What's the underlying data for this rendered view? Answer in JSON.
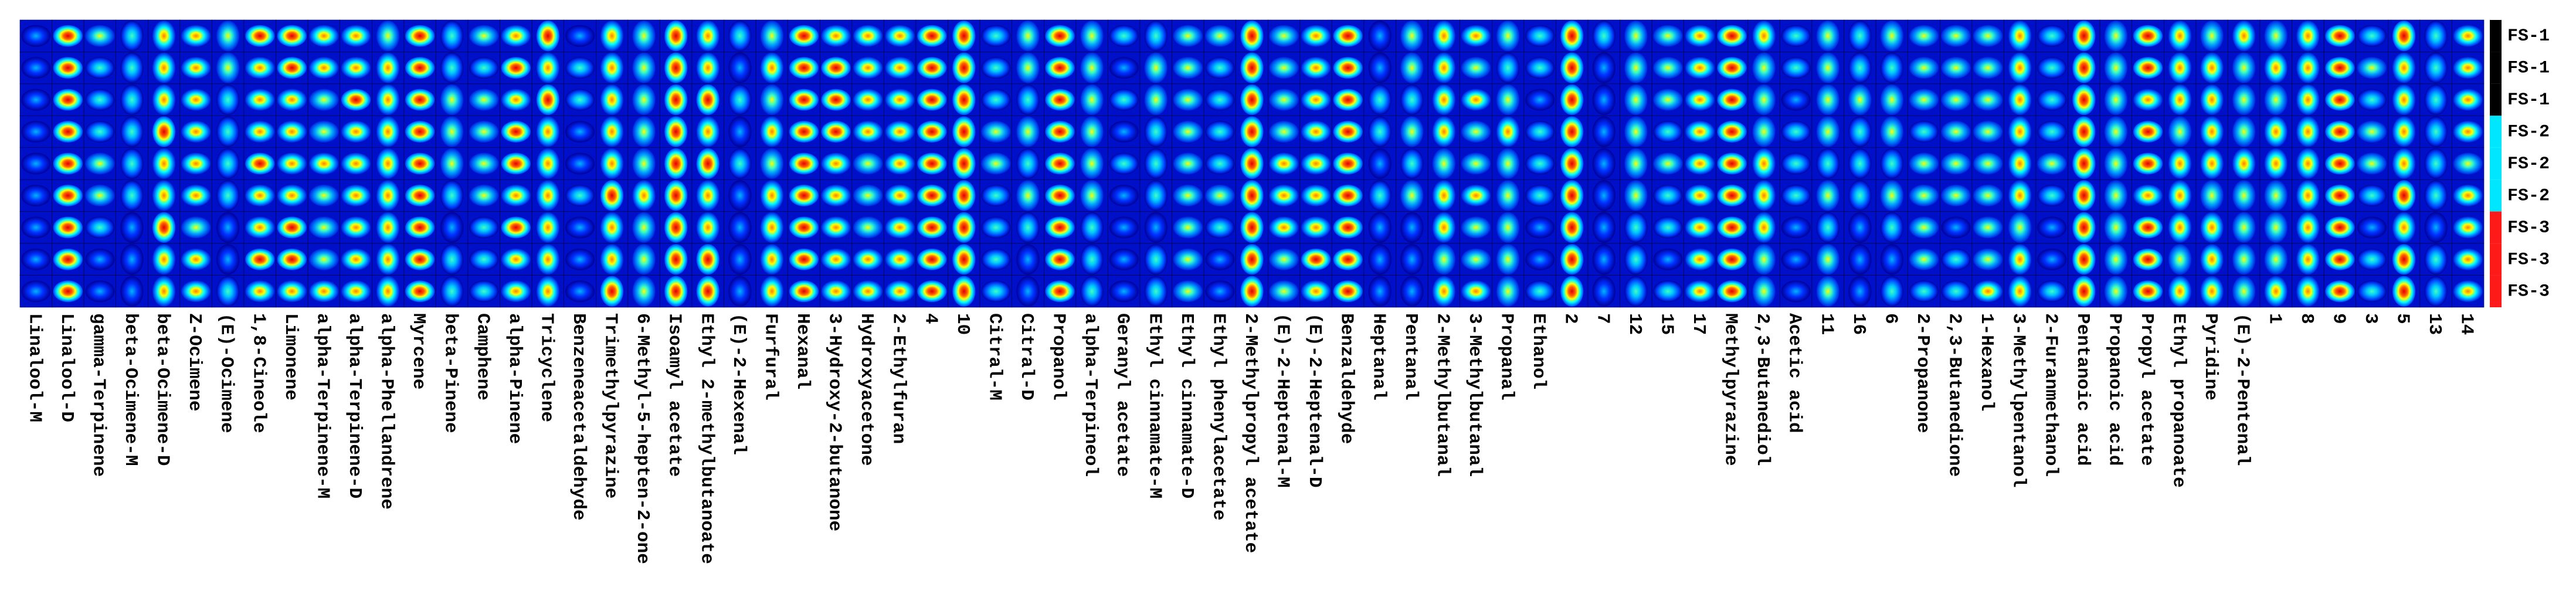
{
  "columns": [
    "Linalool-M",
    "Linalool-D",
    "gamma-Terpinene",
    "beta-Ocimene-M",
    "beta-Ocimene-D",
    "Z-Ocimene",
    "(E)-Ocimene",
    "1,8-Cineole",
    "Limonene",
    "alpha-Terpinene-M",
    "alpha-Terpinene-D",
    "alpha-Phellandrene",
    "Myrcene",
    "beta-Pinene",
    "Camphene",
    "alpha-Pinene",
    "Tricyclene",
    "Benzeneacetaldehyde",
    "Trimethylpyrazine",
    "6-Methyl-5-hepten-2-one",
    "Isoamyl acetate",
    "Ethyl 2-methylbutanoate",
    "(E)-2-Hexenal",
    "Furfural",
    "Hexanal",
    "3-Hydroxy-2-butanone",
    "Hydroxyacetone",
    "2-Ethylfuran",
    "4",
    "10",
    "Citral-M",
    "Citral-D",
    "Propanol",
    "alpha-Terpineol",
    "Geranyl acetate",
    "Ethyl cinnamate-M",
    "Ethyl cinnamate-D",
    "Ethyl phenylacetate",
    "2-Methylpropyl acetate",
    "(E)-2-Heptenal-M",
    "(E)-2-Heptenal-D",
    "Benzaldehyde",
    "Heptanal",
    "Pentanal",
    "2-Methylbutanal",
    "3-Methylbutanal",
    "Propanal",
    "Ethanol",
    "2",
    "7",
    "12",
    "15",
    "17",
    "Methylpyrazine",
    "2,3-Butanediol",
    "Acetic acid",
    "11",
    "16",
    "6",
    "2-Propanone",
    "2,3-Butanedione",
    "1-Hexanol",
    "3-Methylpentanol",
    "2-Furanmethanol",
    "Pentanoic acid",
    "Propanoic acid",
    "Propyl acetate",
    "Ethyl propanoate",
    "Pyridine",
    "(E)-2-Pentenal",
    "1",
    "8",
    "9",
    "3",
    "5",
    "13",
    "14"
  ],
  "rows": [
    {
      "label": "FS-1",
      "color": "#000000"
    },
    {
      "label": "FS-1",
      "color": "#000000"
    },
    {
      "label": "FS-1",
      "color": "#000000"
    },
    {
      "label": "FS-2",
      "color": "#00e6ff"
    },
    {
      "label": "FS-2",
      "color": "#00e6ff"
    },
    {
      "label": "FS-2",
      "color": "#00e6ff"
    },
    {
      "label": "FS-3",
      "color": "#ff1a1a"
    },
    {
      "label": "FS-3",
      "color": "#ff1a1a"
    },
    {
      "label": "FS-3",
      "color": "#ff1a1a"
    }
  ]
}
